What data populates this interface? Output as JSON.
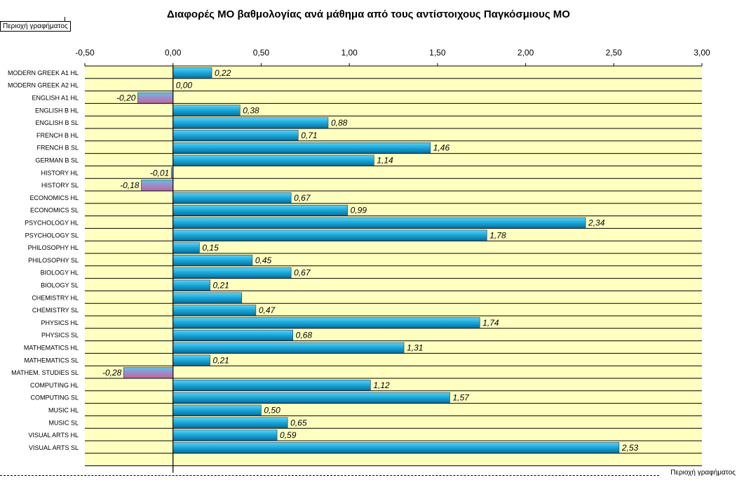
{
  "title": "Διαφορές ΜΟ βαθμολογίας ανά μάθημα από τους αντίστοιχους Παγκόσμιους ΜΟ",
  "plot_area_label": "Περιοχή γραφήματος",
  "colors": {
    "plot_bg": "#ffffc0",
    "positive_bar": "#17a7d8",
    "negative_bar": "#c4659d",
    "grid": "#000000"
  },
  "chart_data": {
    "type": "bar",
    "orientation": "horizontal",
    "title": "Διαφορές ΜΟ βαθμολογίας ανά μάθημα από τους αντίστοιχους Παγκόσμιους ΜΟ",
    "xlim": [
      -0.5,
      3.0
    ],
    "x_ticks": [
      "-0,50",
      "0,00",
      "0,50",
      "1,00",
      "1,50",
      "2,00",
      "2,50",
      "3,00"
    ],
    "x_tick_values": [
      -0.5,
      0,
      0.5,
      1.0,
      1.5,
      2.0,
      2.5,
      3.0
    ],
    "axis_position": "top",
    "grid": "horizontal",
    "categories": [
      "MODERN GREEK A1 HL",
      "MODERN GREEK A2 HL",
      "ENGLISH A1  HL",
      "ENGLISH B  HL",
      "ENGLISH B SL",
      "FRENCH B HL",
      "FRENCH B SL",
      "GERMAN B SL",
      "HISTORY HL",
      "HISTORY SL",
      "ECONOMICS HL",
      "ECONOMICS SL",
      "PSYCHOLOGY HL",
      "PSYCHOLOGY SL",
      "PHILOSOPHY HL",
      "PHILOSOPHY SL",
      "BIOLOGY HL",
      "BIOLOGY SL",
      "CHEMISTRY HL",
      "CHEMISTRY SL",
      "PHYSICS HL",
      "PHYSICS SL",
      "MATHEMATICS HL",
      "MATHEMATICS SL",
      "MATHEM. STUDIES SL",
      "COMPUTING HL",
      "COMPUTING SL",
      "MUSIC HL",
      "MUSIC SL",
      "VISUAL ARTS HL",
      "VISUAL ARTS SL"
    ],
    "values": [
      0.22,
      0.0,
      -0.2,
      0.38,
      0.88,
      0.71,
      1.46,
      1.14,
      -0.01,
      -0.18,
      0.67,
      0.99,
      2.34,
      1.78,
      0.15,
      0.45,
      0.67,
      0.21,
      0.39,
      0.47,
      1.74,
      0.68,
      1.31,
      0.21,
      -0.28,
      1.12,
      1.57,
      0.5,
      0.65,
      0.59,
      2.53
    ],
    "value_labels": [
      "0,22",
      "0,00",
      "-0,20",
      "0,38",
      "0,88",
      "0,71",
      "1,46",
      "1,14",
      "-0,01",
      "-0,18",
      "0,67",
      "0,99",
      "2,34",
      "1,78",
      "0,15",
      "0,45",
      "0,67",
      "0,21",
      "",
      "0,47",
      "1,74",
      "0,68",
      "1,31",
      "0,21",
      "-0,28",
      "1,12",
      "1,57",
      "0,50",
      "0,65",
      "0,59",
      "2,53"
    ]
  }
}
